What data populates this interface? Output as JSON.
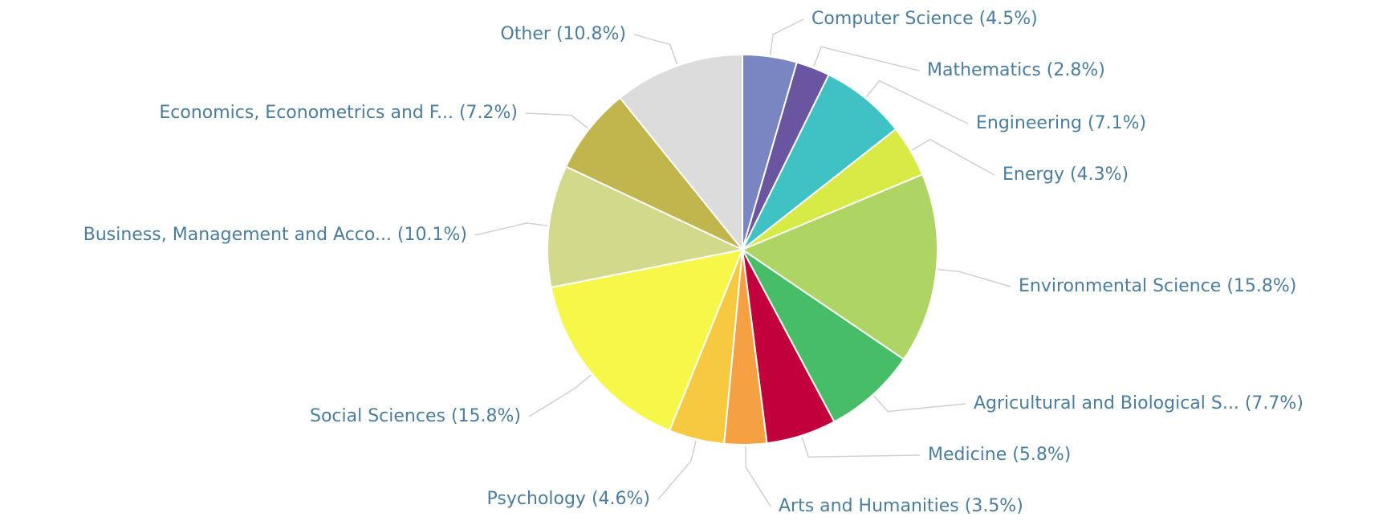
{
  "chart_data": {
    "type": "pie",
    "categories": [
      "Computer Science (4.5%)",
      "Mathematics (2.8%)",
      "Engineering (7.1%)",
      "Energy (4.3%)",
      "Environmental Science (15.8%)",
      "Agricultural and Biological S... (7.7%)",
      "Medicine (5.8%)",
      "Arts and Humanities (3.5%)",
      "Psychology (4.6%)",
      "Social Sciences (15.8%)",
      "Business, Management and Acco... (10.1%)",
      "Economics, Econometrics and F... (7.2%)",
      "Other (10.8%)"
    ],
    "values": [
      4.5,
      2.8,
      7.1,
      4.3,
      15.8,
      7.7,
      5.8,
      3.5,
      4.6,
      15.8,
      10.1,
      7.2,
      10.8
    ],
    "colors": [
      "#7a86c2",
      "#6a55a0",
      "#40c2c4",
      "#d8ea45",
      "#aed563",
      "#48bd68",
      "#c2003c",
      "#f5a043",
      "#f7c940",
      "#f7f74a",
      "#d3d98a",
      "#c1b64d",
      "#dcdcdc"
    ]
  }
}
